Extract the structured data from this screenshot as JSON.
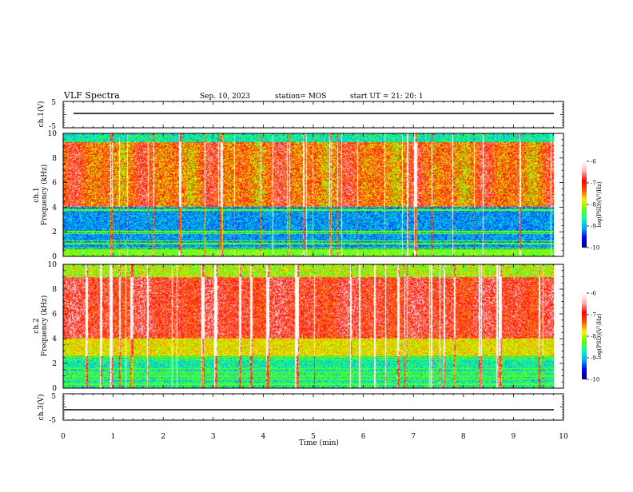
{
  "header": {
    "title": "VLF Spectra",
    "date": "Sep. 10, 2023",
    "station": "station= MOS",
    "start_ut": "start UT =   21: 20: 1"
  },
  "colors": {
    "axis": "#000000",
    "trace": "#000000",
    "colormap": [
      "#000080",
      "#0000ff",
      "#00aaff",
      "#00ffaa",
      "#66ff00",
      "#ffee00",
      "#ff5000",
      "#ff0000",
      "#ffb0b0",
      "#ffffff"
    ]
  },
  "chart_data": [
    {
      "type": "line",
      "ylabel": "ch.1(V)",
      "ylim": [
        -5,
        5
      ],
      "yticks": [
        "5",
        "-5"
      ],
      "xlim": [
        0,
        10
      ],
      "series": [
        {
          "x": [
            0,
            9.8
          ],
          "y": [
            0,
            0
          ]
        }
      ]
    },
    {
      "type": "heatmap",
      "ylabel": "ch.1\nFrequency (kHz)",
      "ylim": [
        0,
        10
      ],
      "yticks": [
        "10",
        "8",
        "6",
        "4",
        "2",
        "0"
      ],
      "xlim": [
        0,
        10
      ],
      "data_xrange": [
        0,
        9.8
      ],
      "colorbar": {
        "label": "log(PSD)(V²/Hz)",
        "ticks": [
          "-6",
          "-7",
          "-8",
          "-9",
          "-10"
        ],
        "range": [
          -10,
          -6
        ]
      }
    },
    {
      "type": "heatmap",
      "ylabel": "ch.2\nFrequency (kHz)",
      "ylim": [
        0,
        10
      ],
      "yticks": [
        "10",
        "8",
        "6",
        "4",
        "2",
        "0"
      ],
      "xlim": [
        0,
        10
      ],
      "data_xrange": [
        0,
        9.8
      ],
      "colorbar": {
        "label": "log(PSD)(V²/Hz)",
        "ticks": [
          "-6",
          "-7",
          "-8",
          "-9",
          "-10"
        ],
        "range": [
          -10,
          -6
        ]
      }
    },
    {
      "type": "line",
      "ylabel": "ch.3(V)",
      "ylim": [
        -5,
        5
      ],
      "yticks": [
        "5",
        "-5"
      ],
      "xlim": [
        0,
        10
      ],
      "series": [
        {
          "x": [
            0,
            9.8
          ],
          "y": [
            0,
            0
          ]
        }
      ],
      "xlabel": "Time (min)",
      "xticks": [
        "0",
        "1",
        "2",
        "3",
        "4",
        "5",
        "6",
        "7",
        "8",
        "9",
        "10"
      ]
    }
  ]
}
